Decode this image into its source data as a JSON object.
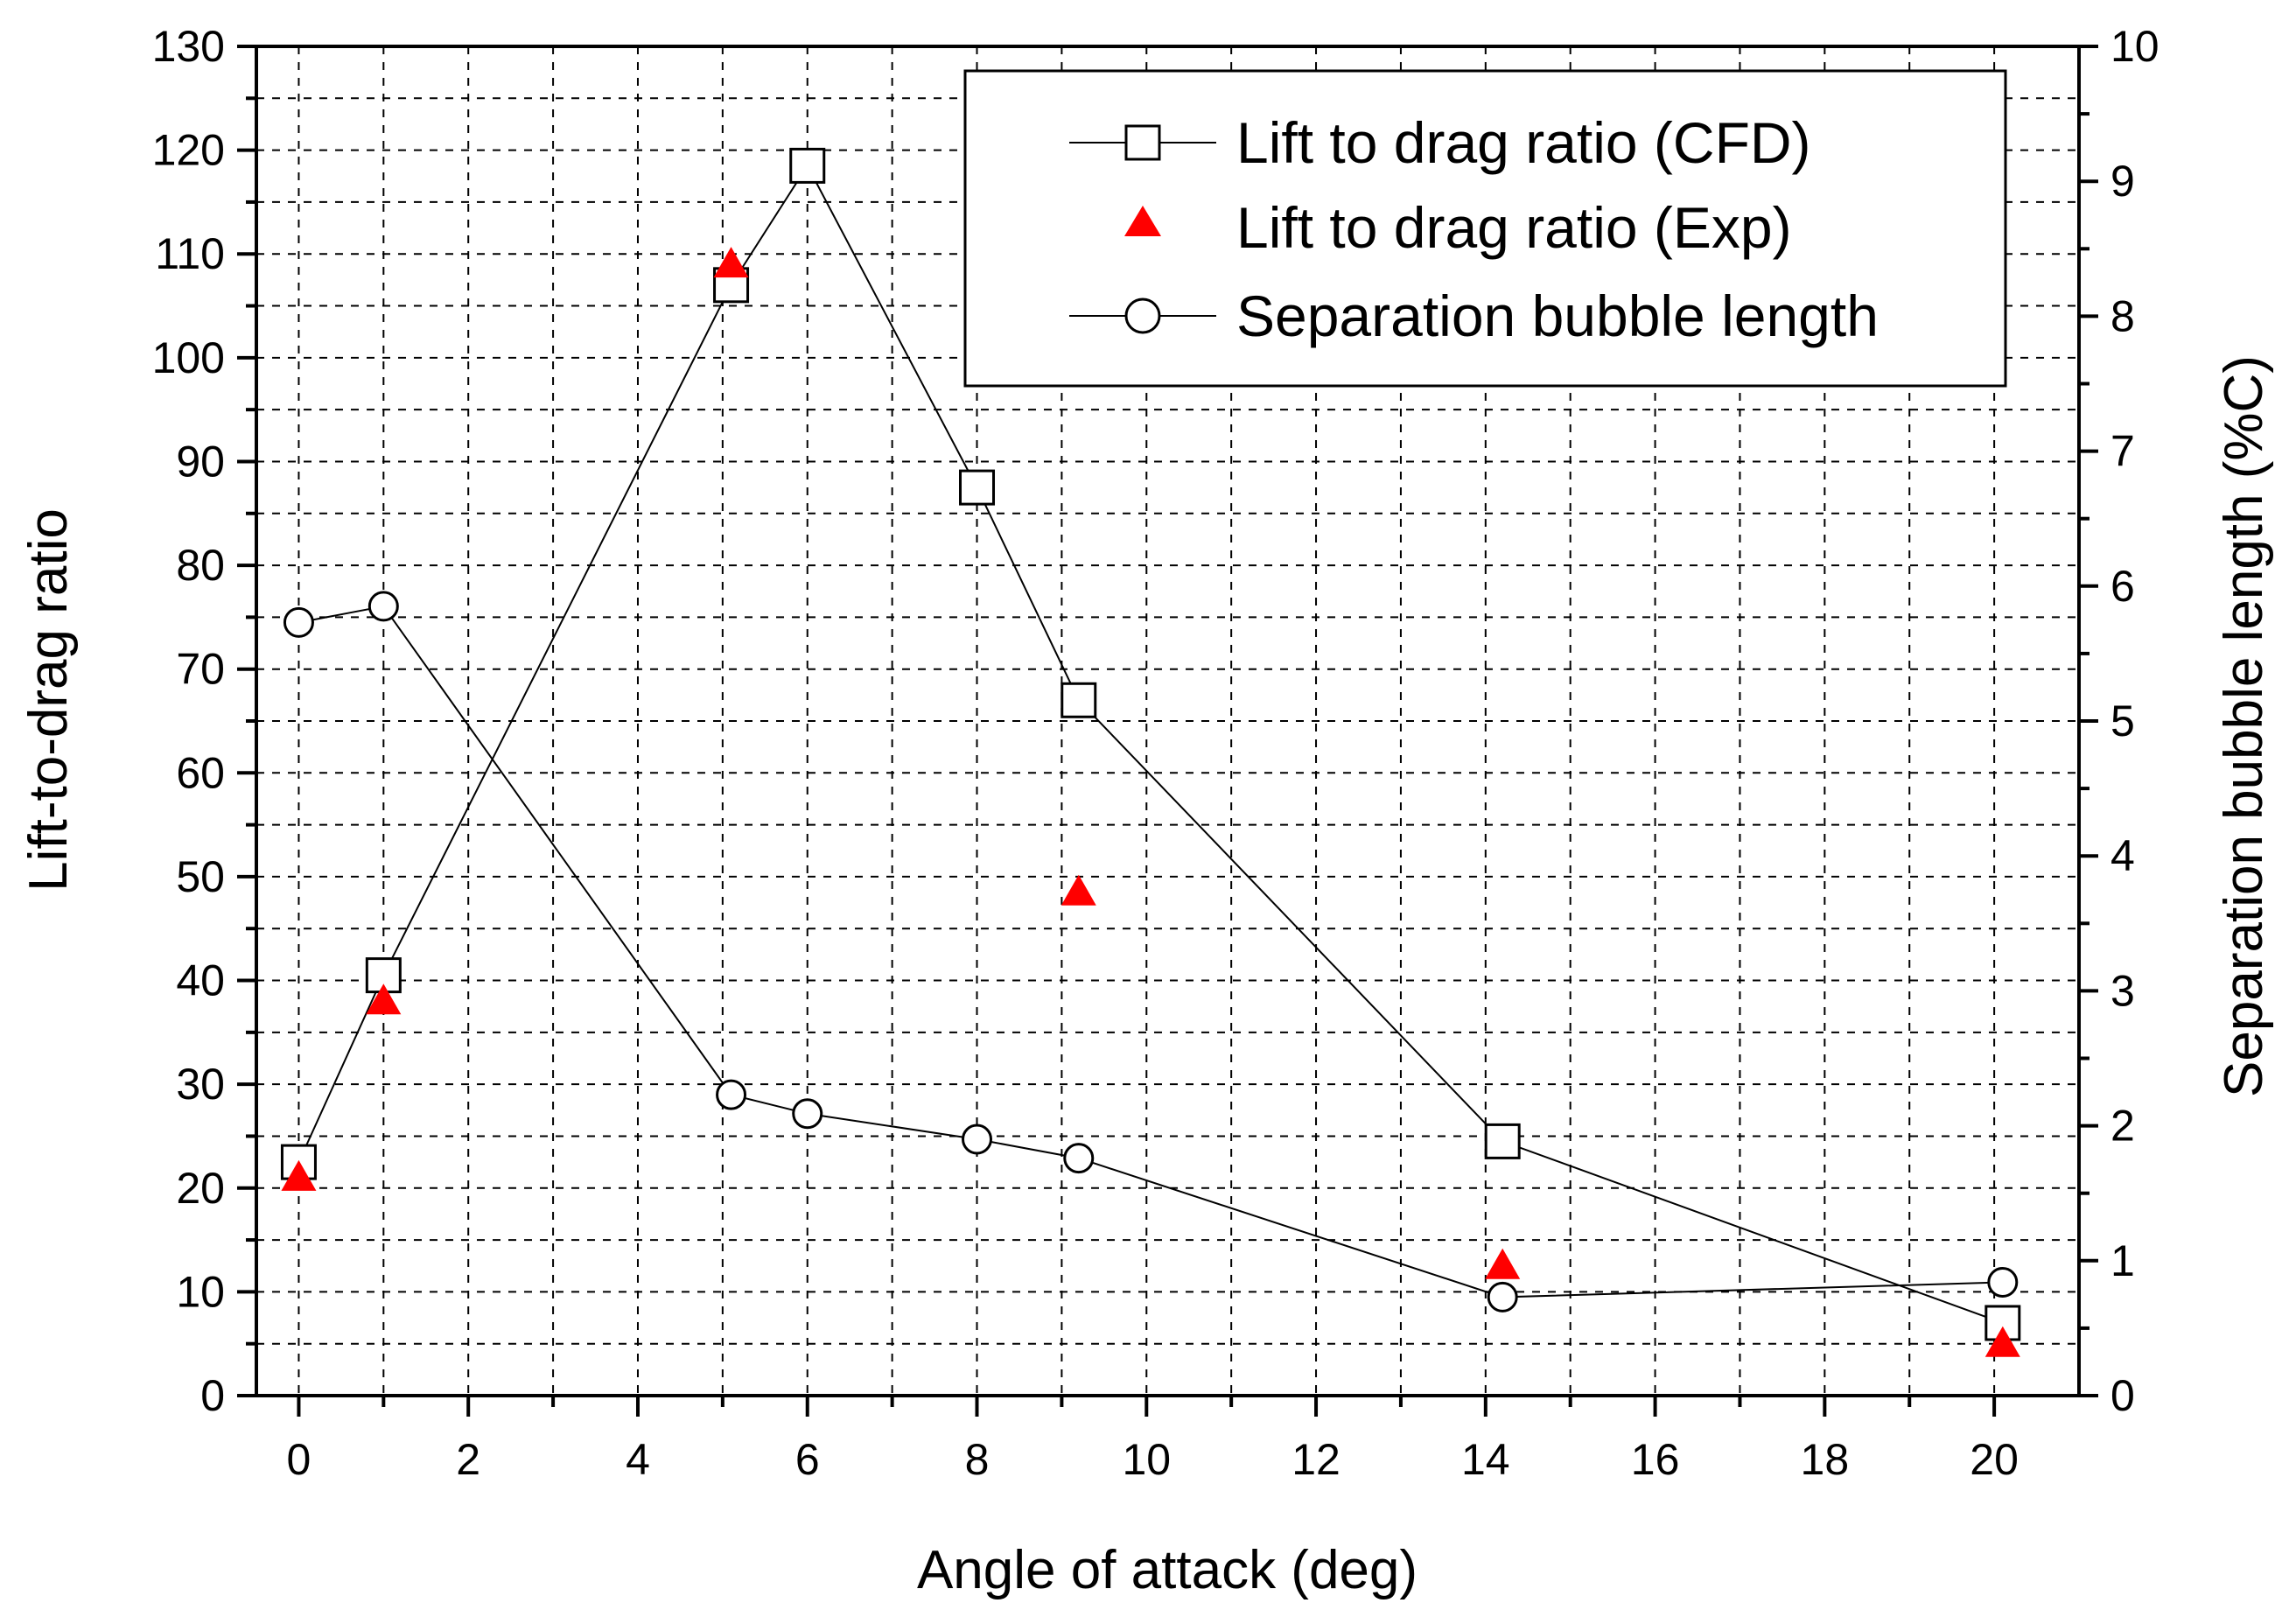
{
  "chart_data": {
    "type": "line",
    "xlabel": "Angle of attack (deg)",
    "ylabel": "Lift-to-drag ratio",
    "y2label": "Separation bubble length (%C)",
    "xlim": [
      -0.5,
      21
    ],
    "ylim": [
      0,
      130
    ],
    "y2lim": [
      0,
      10
    ],
    "x_ticks": [
      0,
      2,
      4,
      6,
      8,
      10,
      12,
      14,
      16,
      18,
      20
    ],
    "x_tick_labels": [
      "0",
      "2",
      "4",
      "6",
      "8",
      "10",
      "12",
      "14",
      "16",
      "18",
      "20"
    ],
    "y_ticks": [
      0,
      10,
      20,
      30,
      40,
      50,
      60,
      70,
      80,
      90,
      100,
      110,
      120,
      130
    ],
    "y_tick_labels": [
      "0",
      "10",
      "20",
      "30",
      "40",
      "50",
      "60",
      "70",
      "80",
      "90",
      "100",
      "110",
      "120",
      "130"
    ],
    "y2_ticks": [
      0,
      1,
      2,
      3,
      4,
      5,
      6,
      7,
      8,
      9,
      10
    ],
    "y2_tick_labels": [
      "0",
      "1",
      "2",
      "3",
      "4",
      "5",
      "6",
      "7",
      "8",
      "9",
      "10"
    ],
    "grid": true,
    "legend_position": "top-right",
    "series": [
      {
        "name": "Lift to drag ratio (CFD)",
        "axis": "left",
        "marker": "open-square",
        "line": true,
        "color": "#000000",
        "x": [
          0,
          1,
          5.1,
          6,
          8,
          9.2,
          14.2,
          20.1
        ],
        "y": [
          22.5,
          40.5,
          107,
          118.5,
          87.5,
          67,
          24.5,
          7
        ]
      },
      {
        "name": "Lift to drag ratio (Exp)",
        "axis": "left",
        "marker": "filled-triangle",
        "line": false,
        "color": "#ff0000",
        "x": [
          0,
          1,
          5.1,
          9.2,
          14.2,
          20.1
        ],
        "y": [
          21,
          38,
          109,
          48.5,
          12.5,
          5
        ]
      },
      {
        "name": "Separation bubble length",
        "axis": "right",
        "marker": "open-circle",
        "line": true,
        "color": "#000000",
        "x": [
          0,
          1,
          5.1,
          6,
          8,
          9.2,
          14.2,
          20.1
        ],
        "y": [
          5.73,
          5.85,
          2.23,
          2.09,
          1.9,
          1.76,
          0.73,
          0.84
        ]
      }
    ]
  }
}
